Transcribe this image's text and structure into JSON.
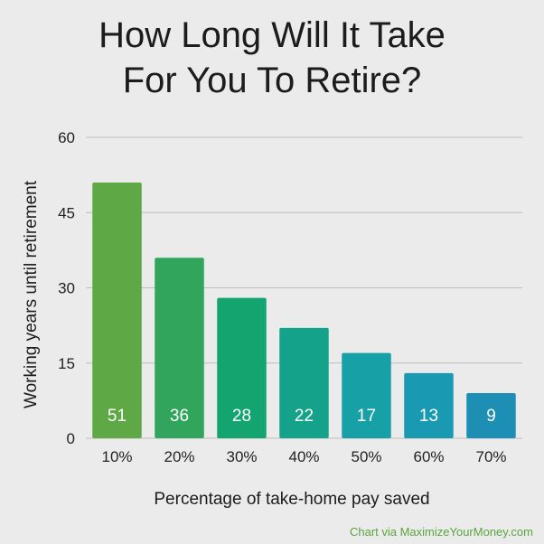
{
  "title_lines": [
    "How Long Will It Take",
    "For You To Retire?"
  ],
  "credit": "Chart via MaximizeYourMoney.com",
  "chart_data": {
    "type": "bar",
    "title": "How Long Will It Take For You To Retire?",
    "xlabel": "Percentage of take-home pay saved",
    "ylabel": "Working years until retirement",
    "categories": [
      "10%",
      "20%",
      "30%",
      "40%",
      "50%",
      "60%",
      "70%"
    ],
    "values": [
      51,
      36,
      28,
      22,
      17,
      13,
      9
    ],
    "data_labels": [
      "51",
      "36",
      "28",
      "22",
      "17",
      "13",
      "9"
    ],
    "ylim": [
      0,
      60
    ],
    "yticks": [
      0,
      15,
      30,
      45,
      60
    ],
    "grid": true,
    "bar_colors": [
      "#5ea845",
      "#31a55c",
      "#13a46f",
      "#14a38a",
      "#17a1a6",
      "#1a99b2",
      "#1d8fb5"
    ]
  }
}
